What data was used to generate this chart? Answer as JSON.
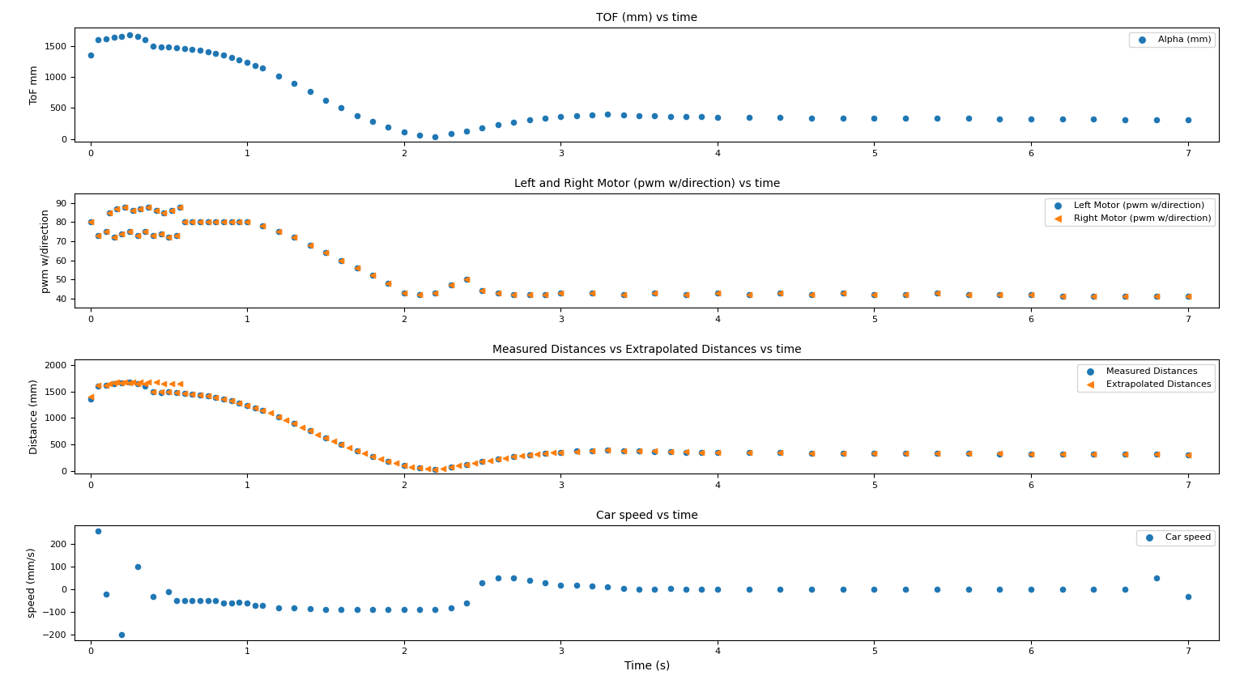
{
  "title1": "TOF (mm) vs time",
  "title2": "Left and Right Motor (pwm w/direction) vs time",
  "title3": "Measured Distances vs Extrapolated Distances vs time",
  "title4": "Car speed vs time",
  "xlabel": "Time (s)",
  "ylabel1": "ToF mm",
  "ylabel2": "pwm w/direction",
  "ylabel3": "Distance (mm)",
  "ylabel4": "speed (mm/s)",
  "legend1": [
    "Alpha (mm)"
  ],
  "legend2": [
    "Left Motor (pwm w/direction)",
    "Right Motor (pwm w/direction)"
  ],
  "legend3": [
    "Measured Distances",
    "Extrapolated Distances"
  ],
  "legend4": [
    "Car speed"
  ],
  "tof_time": [
    0.0,
    0.05,
    0.1,
    0.15,
    0.2,
    0.25,
    0.3,
    0.35,
    0.4,
    0.45,
    0.5,
    0.55,
    0.6,
    0.65,
    0.7,
    0.75,
    0.8,
    0.85,
    0.9,
    0.95,
    1.0,
    1.05,
    1.1,
    1.2,
    1.3,
    1.4,
    1.5,
    1.6,
    1.7,
    1.8,
    1.9,
    2.0,
    2.1,
    2.2,
    2.3,
    2.4,
    2.5,
    2.6,
    2.7,
    2.8,
    2.9,
    3.0,
    3.1,
    3.2,
    3.3,
    3.4,
    3.5,
    3.6,
    3.7,
    3.8,
    3.9,
    4.0,
    4.2,
    4.4,
    4.6,
    4.8,
    5.0,
    5.2,
    5.4,
    5.6,
    5.8,
    6.0,
    6.2,
    6.4,
    6.6,
    6.8,
    7.0
  ],
  "tof_values": [
    1350,
    1600,
    1620,
    1640,
    1660,
    1680,
    1650,
    1600,
    1500,
    1480,
    1490,
    1470,
    1460,
    1450,
    1430,
    1410,
    1380,
    1350,
    1320,
    1280,
    1240,
    1190,
    1140,
    1020,
    900,
    760,
    620,
    500,
    380,
    280,
    190,
    110,
    60,
    30,
    80,
    130,
    180,
    230,
    270,
    310,
    340,
    360,
    380,
    390,
    400,
    390,
    380,
    370,
    365,
    360,
    355,
    350,
    350,
    345,
    340,
    340,
    335,
    335,
    330,
    330,
    325,
    325,
    320,
    320,
    315,
    315,
    310
  ],
  "motor_time_l": [
    0.0,
    0.05,
    0.1,
    0.12,
    0.15,
    0.17,
    0.2,
    0.22,
    0.25,
    0.27,
    0.3,
    0.32,
    0.35,
    0.37,
    0.4,
    0.42,
    0.45,
    0.47,
    0.5,
    0.52,
    0.55,
    0.57,
    0.6,
    0.65,
    0.7,
    0.75,
    0.8,
    0.85,
    0.9,
    0.95,
    1.0,
    1.1,
    1.2,
    1.3,
    1.4,
    1.5,
    1.6,
    1.7,
    1.8,
    1.9,
    2.0,
    2.1,
    2.2,
    2.3,
    2.4,
    2.5,
    2.6,
    2.7,
    2.8,
    2.9,
    3.0,
    3.2,
    3.4,
    3.6,
    3.8,
    4.0,
    4.2,
    4.4,
    4.6,
    4.8,
    5.0,
    5.2,
    5.4,
    5.6,
    5.8,
    6.0,
    6.2,
    6.4,
    6.6,
    6.8,
    7.0
  ],
  "motor_values_l": [
    80,
    73,
    75,
    85,
    72,
    87,
    74,
    88,
    75,
    86,
    73,
    87,
    75,
    88,
    73,
    86,
    74,
    85,
    72,
    86,
    73,
    88,
    80,
    80,
    80,
    80,
    80,
    80,
    80,
    80,
    80,
    78,
    75,
    72,
    68,
    64,
    60,
    56,
    52,
    48,
    43,
    42,
    43,
    47,
    50,
    44,
    43,
    42,
    42,
    42,
    43,
    43,
    42,
    43,
    42,
    43,
    42,
    43,
    42,
    43,
    42,
    42,
    43,
    42,
    42,
    42,
    41,
    41,
    41,
    41,
    41
  ],
  "motor_time_r": [
    0.0,
    0.05,
    0.1,
    0.12,
    0.15,
    0.17,
    0.2,
    0.22,
    0.25,
    0.27,
    0.3,
    0.32,
    0.35,
    0.37,
    0.4,
    0.42,
    0.45,
    0.47,
    0.5,
    0.52,
    0.55,
    0.57,
    0.6,
    0.65,
    0.7,
    0.75,
    0.8,
    0.85,
    0.9,
    0.95,
    1.0,
    1.1,
    1.2,
    1.3,
    1.4,
    1.5,
    1.6,
    1.7,
    1.8,
    1.9,
    2.0,
    2.1,
    2.2,
    2.3,
    2.4,
    2.5,
    2.6,
    2.7,
    2.8,
    2.9,
    3.0,
    3.2,
    3.4,
    3.6,
    3.8,
    4.0,
    4.2,
    4.4,
    4.6,
    4.8,
    5.0,
    5.2,
    5.4,
    5.6,
    5.8,
    6.0,
    6.2,
    6.4,
    6.6,
    6.8,
    7.0
  ],
  "motor_values_r": [
    80,
    73,
    75,
    85,
    72,
    87,
    74,
    88,
    75,
    86,
    73,
    87,
    75,
    88,
    73,
    86,
    74,
    85,
    72,
    86,
    73,
    88,
    80,
    80,
    80,
    80,
    80,
    80,
    80,
    80,
    80,
    78,
    75,
    72,
    68,
    64,
    60,
    56,
    52,
    48,
    43,
    42,
    43,
    47,
    50,
    44,
    43,
    42,
    42,
    42,
    43,
    43,
    42,
    43,
    42,
    43,
    42,
    43,
    42,
    43,
    42,
    42,
    43,
    42,
    42,
    42,
    41,
    41,
    41,
    41,
    41
  ],
  "dist_time_m": [
    0.0,
    0.05,
    0.1,
    0.15,
    0.2,
    0.25,
    0.3,
    0.35,
    0.4,
    0.45,
    0.5,
    0.55,
    0.6,
    0.65,
    0.7,
    0.75,
    0.8,
    0.85,
    0.9,
    0.95,
    1.0,
    1.05,
    1.1,
    1.2,
    1.3,
    1.4,
    1.5,
    1.6,
    1.7,
    1.8,
    1.9,
    2.0,
    2.1,
    2.2,
    2.3,
    2.4,
    2.5,
    2.6,
    2.7,
    2.8,
    2.9,
    3.0,
    3.1,
    3.2,
    3.3,
    3.4,
    3.5,
    3.6,
    3.7,
    3.8,
    3.9,
    4.0,
    4.2,
    4.4,
    4.6,
    4.8,
    5.0,
    5.2,
    5.4,
    5.6,
    5.8,
    6.0,
    6.2,
    6.4,
    6.6,
    6.8,
    7.0
  ],
  "dist_values_m": [
    1350,
    1600,
    1620,
    1640,
    1660,
    1680,
    1650,
    1600,
    1500,
    1480,
    1490,
    1470,
    1460,
    1450,
    1430,
    1410,
    1380,
    1350,
    1320,
    1280,
    1240,
    1190,
    1140,
    1020,
    900,
    760,
    620,
    500,
    380,
    280,
    190,
    110,
    60,
    30,
    80,
    130,
    180,
    230,
    270,
    310,
    340,
    360,
    380,
    390,
    400,
    390,
    380,
    370,
    365,
    360,
    355,
    350,
    350,
    345,
    340,
    340,
    335,
    335,
    330,
    330,
    325,
    325,
    320,
    320,
    315,
    315,
    310
  ],
  "dist_time_e": [
    0.0,
    0.05,
    0.1,
    0.12,
    0.15,
    0.17,
    0.2,
    0.22,
    0.25,
    0.27,
    0.3,
    0.32,
    0.35,
    0.37,
    0.4,
    0.42,
    0.45,
    0.47,
    0.5,
    0.52,
    0.55,
    0.57,
    0.6,
    0.65,
    0.7,
    0.75,
    0.8,
    0.85,
    0.9,
    0.95,
    1.0,
    1.05,
    1.1,
    1.15,
    1.2,
    1.25,
    1.3,
    1.35,
    1.4,
    1.45,
    1.5,
    1.55,
    1.6,
    1.65,
    1.7,
    1.75,
    1.8,
    1.85,
    1.9,
    1.95,
    2.0,
    2.05,
    2.1,
    2.15,
    2.2,
    2.25,
    2.3,
    2.35,
    2.4,
    2.45,
    2.5,
    2.55,
    2.6,
    2.65,
    2.7,
    2.75,
    2.8,
    2.85,
    2.9,
    2.95,
    3.0,
    3.1,
    3.2,
    3.3,
    3.4,
    3.5,
    3.6,
    3.7,
    3.8,
    3.9,
    4.0,
    4.2,
    4.4,
    4.6,
    4.8,
    5.0,
    5.2,
    5.4,
    5.6,
    5.8,
    6.0,
    6.2,
    6.4,
    6.6,
    6.8,
    7.0
  ],
  "dist_values_e": [
    1400,
    1610,
    1620,
    1650,
    1655,
    1670,
    1660,
    1680,
    1660,
    1680,
    1650,
    1680,
    1650,
    1680,
    1500,
    1680,
    1490,
    1650,
    1490,
    1650,
    1470,
    1650,
    1460,
    1450,
    1430,
    1410,
    1380,
    1350,
    1320,
    1280,
    1240,
    1190,
    1140,
    1090,
    1020,
    960,
    900,
    830,
    760,
    690,
    620,
    560,
    500,
    440,
    380,
    330,
    280,
    230,
    190,
    150,
    110,
    85,
    60,
    45,
    30,
    55,
    80,
    105,
    130,
    155,
    180,
    205,
    230,
    252,
    270,
    288,
    310,
    325,
    340,
    352,
    360,
    375,
    390,
    393,
    390,
    382,
    378,
    370,
    366,
    360,
    356,
    350,
    347,
    343,
    340,
    338,
    336,
    334,
    332,
    330,
    328,
    323,
    323,
    318,
    318,
    313
  ],
  "speed_time": [
    0.05,
    0.1,
    0.2,
    0.3,
    0.4,
    0.5,
    0.55,
    0.6,
    0.65,
    0.7,
    0.75,
    0.8,
    0.85,
    0.9,
    0.95,
    1.0,
    1.05,
    1.1,
    1.2,
    1.3,
    1.4,
    1.5,
    1.6,
    1.7,
    1.8,
    1.9,
    2.0,
    2.1,
    2.2,
    2.3,
    2.4,
    2.5,
    2.6,
    2.7,
    2.8,
    2.9,
    3.0,
    3.1,
    3.2,
    3.3,
    3.4,
    3.5,
    3.6,
    3.7,
    3.8,
    3.9,
    4.0,
    4.2,
    4.4,
    4.6,
    4.8,
    5.0,
    5.2,
    5.4,
    5.6,
    5.8,
    6.0,
    6.2,
    6.4,
    6.6,
    6.8,
    7.0
  ],
  "speed_values": [
    260,
    -20,
    -200,
    100,
    -30,
    -10,
    -50,
    -50,
    -50,
    -50,
    -50,
    -50,
    -60,
    -60,
    -55,
    -60,
    -70,
    -70,
    -80,
    -80,
    -85,
    -90,
    -90,
    -90,
    -90,
    -90,
    -90,
    -90,
    -90,
    -80,
    -60,
    30,
    50,
    50,
    40,
    30,
    20,
    20,
    15,
    10,
    5,
    0,
    0,
    5,
    0,
    0,
    0,
    0,
    0,
    0,
    0,
    0,
    0,
    0,
    0,
    0,
    0,
    0,
    0,
    0,
    50,
    -30
  ],
  "color_blue": "#1f77b4",
  "color_orange": "#ff7f0e",
  "dot_size": 20,
  "figsize": [
    15.36,
    8.5
  ],
  "dpi": 100
}
